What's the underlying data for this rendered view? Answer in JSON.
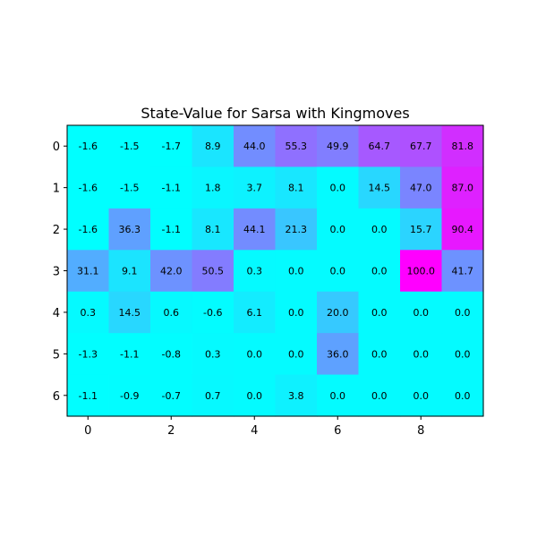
{
  "chart_data": {
    "type": "heatmap",
    "title": "State-Value for Sarsa with Kingmoves",
    "xlabel": "",
    "ylabel": "",
    "colormap": "cool",
    "colormap_endpoints": [
      "#00ffff",
      "#ff00ff"
    ],
    "vmin": -1.6,
    "vmax": 100.0,
    "x_ticks": [
      0,
      2,
      4,
      6,
      8
    ],
    "y_ticks": [
      0,
      1,
      2,
      3,
      4,
      5,
      6
    ],
    "x_tick_labels": [
      "0",
      "2",
      "4",
      "6",
      "8"
    ],
    "y_tick_labels": [
      "0",
      "1",
      "2",
      "3",
      "4",
      "5",
      "6"
    ],
    "rows": 7,
    "cols": 10,
    "values": [
      [
        -1.6,
        -1.5,
        -1.7,
        8.9,
        44.0,
        55.3,
        49.9,
        64.7,
        67.7,
        81.8
      ],
      [
        -1.6,
        -1.5,
        -1.1,
        1.8,
        3.7,
        8.1,
        0.0,
        14.5,
        47.0,
        87.0
      ],
      [
        -1.6,
        36.3,
        -1.1,
        8.1,
        44.1,
        21.3,
        0.0,
        0.0,
        15.7,
        90.4
      ],
      [
        31.1,
        9.1,
        42.0,
        50.5,
        0.3,
        0.0,
        0.0,
        0.0,
        100.0,
        41.7
      ],
      [
        0.3,
        14.5,
        0.6,
        -0.6,
        6.1,
        0.0,
        20.0,
        0.0,
        0.0,
        0.0
      ],
      [
        -1.3,
        -1.1,
        -0.8,
        0.3,
        0.0,
        0.0,
        36.0,
        0.0,
        0.0,
        0.0
      ],
      [
        -1.1,
        -0.9,
        -0.7,
        0.7,
        0.0,
        3.8,
        0.0,
        0.0,
        0.0,
        0.0
      ]
    ],
    "value_labels": [
      [
        "-1.6",
        "-1.5",
        "-1.7",
        "8.9",
        "44.0",
        "55.3",
        "49.9",
        "64.7",
        "67.7",
        "81.8"
      ],
      [
        "-1.6",
        "-1.5",
        "-1.1",
        "1.8",
        "3.7",
        "8.1",
        "0.0",
        "14.5",
        "47.0",
        "87.0"
      ],
      [
        "-1.6",
        "36.3",
        "-1.1",
        "8.1",
        "44.1",
        "21.3",
        "0.0",
        "0.0",
        "15.7",
        "90.4"
      ],
      [
        "31.1",
        "9.1",
        "42.0",
        "50.5",
        "0.3",
        "0.0",
        "0.0",
        "0.0",
        "100.0",
        "41.7"
      ],
      [
        "0.3",
        "14.5",
        "0.6",
        "-0.6",
        "6.1",
        "0.0",
        "20.0",
        "0.0",
        "0.0",
        "0.0"
      ],
      [
        "-1.3",
        "-1.1",
        "-0.8",
        "0.3",
        "0.0",
        "0.0",
        "36.0",
        "0.0",
        "0.0",
        "0.0"
      ],
      [
        "-1.1",
        "-0.9",
        "-0.7",
        "0.7",
        "0.0",
        "3.8",
        "0.0",
        "0.0",
        "0.0",
        "0.0"
      ]
    ],
    "grid": false,
    "legend": "none"
  }
}
